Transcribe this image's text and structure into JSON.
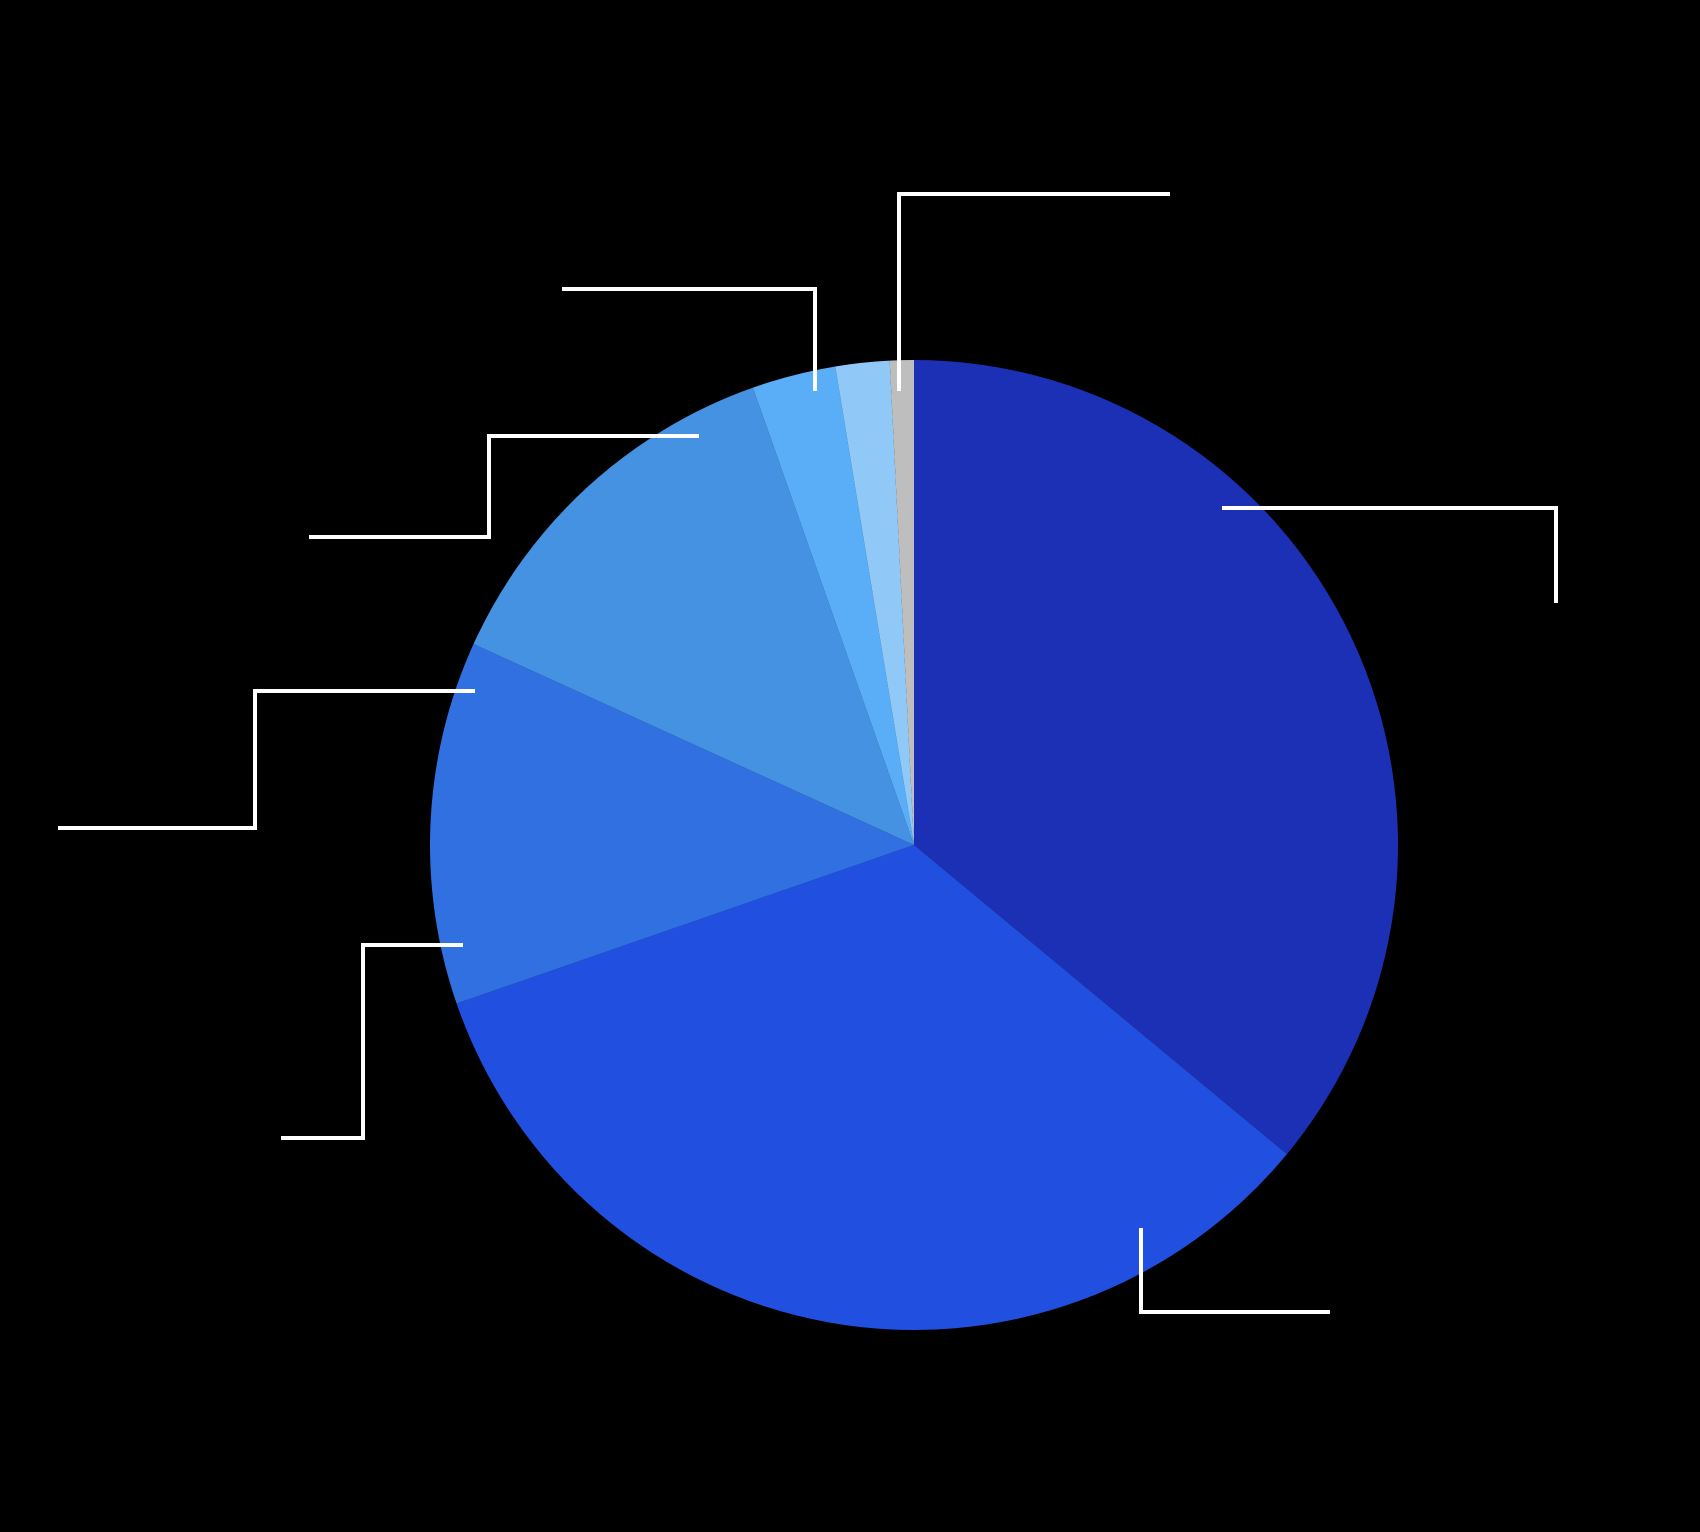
{
  "chart_data": {
    "type": "pie",
    "start": "12 o'clock",
    "direction": "clockwise",
    "legend": "none",
    "slices": [
      {
        "value": 36.0,
        "color": "#1c30b5"
      },
      {
        "value": 33.7,
        "color": "#2150e0"
      },
      {
        "value": 12.1,
        "color": "#3170e0"
      },
      {
        "value": 12.8,
        "color": "#4591e2"
      },
      {
        "value": 2.8,
        "color": "#5aaef7"
      },
      {
        "value": 1.8,
        "color": "#90c9f8"
      },
      {
        "value": 0.8,
        "color": "#bebebe"
      }
    ]
  }
}
